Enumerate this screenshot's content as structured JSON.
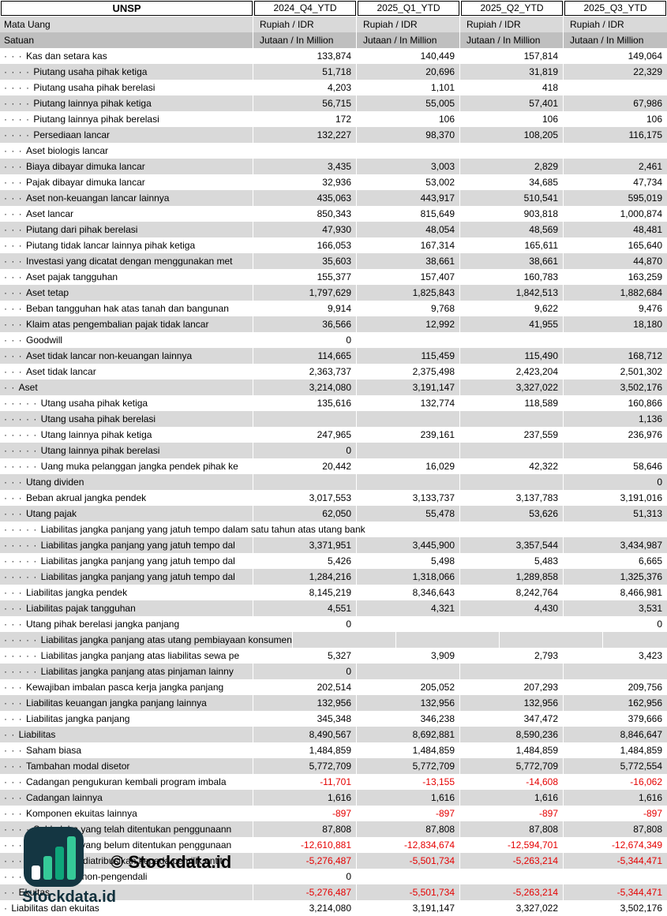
{
  "header": {
    "ticker": "UNSP",
    "periods": [
      "2024_Q4_YTD",
      "2025_Q1_YTD",
      "2025_Q2_YTD",
      "2025_Q3_YTD"
    ],
    "currency_row": {
      "label": "Mata Uang",
      "values": [
        "Rupiah / IDR",
        "Rupiah / IDR",
        "Rupiah / IDR",
        "Rupiah / IDR"
      ]
    },
    "unit_row": {
      "label": "Satuan",
      "values": [
        "Jutaan / In Million",
        "Jutaan / In Million",
        "Jutaan / In Million",
        "Jutaan / In Million"
      ]
    }
  },
  "colors": {
    "row_alt_bg": "#d9d9d9",
    "unit_row_bg": "#bfbfbf",
    "negative_value": "#e50000",
    "logo_dark": "#143642",
    "logo_green": "#35c998"
  },
  "watermark": {
    "copyright_text": "© Stockdata.id",
    "wordmark": "Stockdata.id",
    "icon": "bar-chart-icon"
  },
  "rows": [
    {
      "indent": 3,
      "label": "Kas dan setara kas",
      "values": [
        "133,874",
        "140,449",
        "157,814",
        "149,064"
      ]
    },
    {
      "indent": 4,
      "label": "Piutang usaha pihak ketiga",
      "values": [
        "51,718",
        "20,696",
        "31,819",
        "22,329"
      ]
    },
    {
      "indent": 4,
      "label": "Piutang usaha pihak berelasi",
      "values": [
        "4,203",
        "1,101",
        "418",
        ""
      ]
    },
    {
      "indent": 4,
      "label": "Piutang lainnya pihak ketiga",
      "values": [
        "56,715",
        "55,005",
        "57,401",
        "67,986"
      ]
    },
    {
      "indent": 4,
      "label": "Piutang lainnya pihak berelasi",
      "values": [
        "172",
        "106",
        "106",
        "106"
      ]
    },
    {
      "indent": 4,
      "label": "Persediaan lancar",
      "values": [
        "132,227",
        "98,370",
        "108,205",
        "116,175"
      ]
    },
    {
      "indent": 3,
      "label": "Aset biologis lancar",
      "values": [
        "",
        "",
        "",
        ""
      ]
    },
    {
      "indent": 3,
      "label": "Biaya dibayar dimuka lancar",
      "values": [
        "3,435",
        "3,003",
        "2,829",
        "2,461"
      ]
    },
    {
      "indent": 3,
      "label": "Pajak dibayar dimuka lancar",
      "values": [
        "32,936",
        "53,002",
        "34,685",
        "47,734"
      ]
    },
    {
      "indent": 3,
      "label": "Aset non-keuangan lancar lainnya",
      "values": [
        "435,063",
        "443,917",
        "510,541",
        "595,019"
      ]
    },
    {
      "indent": 3,
      "label": "Aset lancar",
      "values": [
        "850,343",
        "815,649",
        "903,818",
        "1,000,874"
      ]
    },
    {
      "indent": 3,
      "label": "Piutang dari pihak berelasi",
      "values": [
        "47,930",
        "48,054",
        "48,569",
        "48,481"
      ]
    },
    {
      "indent": 3,
      "label": "Piutang tidak lancar lainnya pihak ketiga",
      "values": [
        "166,053",
        "167,314",
        "165,611",
        "165,640"
      ]
    },
    {
      "indent": 3,
      "label": "Investasi yang dicatat dengan menggunakan met",
      "values": [
        "35,603",
        "38,661",
        "38,661",
        "44,870"
      ]
    },
    {
      "indent": 3,
      "label": "Aset pajak tangguhan",
      "values": [
        "155,377",
        "157,407",
        "160,783",
        "163,259"
      ]
    },
    {
      "indent": 3,
      "label": "Aset tetap",
      "values": [
        "1,797,629",
        "1,825,843",
        "1,842,513",
        "1,882,684"
      ]
    },
    {
      "indent": 3,
      "label": "Beban tangguhan hak atas tanah dan bangunan",
      "values": [
        "9,914",
        "9,768",
        "9,622",
        "9,476"
      ]
    },
    {
      "indent": 3,
      "label": "Klaim atas pengembalian pajak tidak lancar",
      "values": [
        "36,566",
        "12,992",
        "41,955",
        "18,180"
      ]
    },
    {
      "indent": 3,
      "label": "Goodwill",
      "values": [
        "0",
        "",
        "",
        ""
      ]
    },
    {
      "indent": 3,
      "label": "Aset tidak lancar non-keuangan lainnya",
      "values": [
        "114,665",
        "115,459",
        "115,490",
        "168,712"
      ]
    },
    {
      "indent": 3,
      "label": "Aset tidak lancar",
      "values": [
        "2,363,737",
        "2,375,498",
        "2,423,204",
        "2,501,302"
      ]
    },
    {
      "indent": 2,
      "label": "Aset",
      "values": [
        "3,214,080",
        "3,191,147",
        "3,327,022",
        "3,502,176"
      ]
    },
    {
      "indent": 5,
      "label": "Utang usaha pihak ketiga",
      "values": [
        "135,616",
        "132,774",
        "118,589",
        "160,866"
      ]
    },
    {
      "indent": 5,
      "label": "Utang usaha pihak berelasi",
      "values": [
        "",
        "",
        "",
        "1,136"
      ]
    },
    {
      "indent": 5,
      "label": "Utang lainnya pihak ketiga",
      "values": [
        "247,965",
        "239,161",
        "237,559",
        "236,976"
      ]
    },
    {
      "indent": 5,
      "label": "Utang lainnya pihak berelasi",
      "values": [
        "0",
        "",
        "",
        ""
      ]
    },
    {
      "indent": 5,
      "label": "Uang muka pelanggan jangka pendek pihak ke",
      "values": [
        "20,442",
        "16,029",
        "42,322",
        "58,646"
      ]
    },
    {
      "indent": 3,
      "label": "Utang dividen",
      "values": [
        "",
        "",
        "",
        "0"
      ]
    },
    {
      "indent": 3,
      "label": "Beban akrual jangka pendek",
      "values": [
        "3,017,553",
        "3,133,737",
        "3,137,783",
        "3,191,016"
      ]
    },
    {
      "indent": 3,
      "label": "Utang pajak",
      "values": [
        "62,050",
        "55,478",
        "53,626",
        "51,313"
      ]
    },
    {
      "indent": 5,
      "label": "Liabilitas jangka panjang yang jatuh tempo dalam satu tahun atas utang bank",
      "values": [
        "",
        "",
        "",
        ""
      ]
    },
    {
      "indent": 5,
      "label": "Liabilitas jangka panjang yang jatuh tempo dal",
      "values": [
        "3,371,951",
        "3,445,900",
        "3,357,544",
        "3,434,987"
      ]
    },
    {
      "indent": 5,
      "label": "Liabilitas jangka panjang yang jatuh tempo dal",
      "values": [
        "5,426",
        "5,498",
        "5,483",
        "6,665"
      ]
    },
    {
      "indent": 5,
      "label": "Liabilitas jangka panjang yang jatuh tempo dal",
      "values": [
        "1,284,216",
        "1,318,066",
        "1,289,858",
        "1,325,376"
      ]
    },
    {
      "indent": 3,
      "label": "Liabilitas jangka pendek",
      "values": [
        "8,145,219",
        "8,346,643",
        "8,242,764",
        "8,466,981"
      ]
    },
    {
      "indent": 3,
      "label": "Liabilitas pajak tangguhan",
      "values": [
        "4,551",
        "4,321",
        "4,430",
        "3,531"
      ]
    },
    {
      "indent": 3,
      "label": "Utang pihak berelasi jangka panjang",
      "values": [
        "0",
        "",
        "",
        "0"
      ]
    },
    {
      "indent": 5,
      "label": "Liabilitas jangka panjang atas utang pembiayaan konsumen",
      "values": [
        "",
        "",
        "",
        ""
      ]
    },
    {
      "indent": 5,
      "label": "Liabilitas jangka panjang atas liabilitas sewa pe",
      "values": [
        "5,327",
        "3,909",
        "2,793",
        "3,423"
      ]
    },
    {
      "indent": 5,
      "label": "Liabilitas jangka panjang atas pinjaman lainny",
      "values": [
        "0",
        "",
        "",
        ""
      ]
    },
    {
      "indent": 3,
      "label": "Kewajiban imbalan pasca kerja jangka panjang",
      "values": [
        "202,514",
        "205,052",
        "207,293",
        "209,756"
      ]
    },
    {
      "indent": 3,
      "label": "Liabilitas keuangan jangka panjang lainnya",
      "values": [
        "132,956",
        "132,956",
        "132,956",
        "162,956"
      ]
    },
    {
      "indent": 3,
      "label": "Liabilitas jangka panjang",
      "values": [
        "345,348",
        "346,238",
        "347,472",
        "379,666"
      ]
    },
    {
      "indent": 2,
      "label": "Liabilitas",
      "values": [
        "8,490,567",
        "8,692,881",
        "8,590,236",
        "8,846,647"
      ]
    },
    {
      "indent": 3,
      "label": "Saham biasa",
      "values": [
        "1,484,859",
        "1,484,859",
        "1,484,859",
        "1,484,859"
      ]
    },
    {
      "indent": 3,
      "label": "Tambahan modal disetor",
      "values": [
        "5,772,709",
        "5,772,709",
        "5,772,709",
        "5,772,554"
      ]
    },
    {
      "indent": 3,
      "label": "Cadangan pengukuran kembali program imbala",
      "values": [
        "-11,701",
        "-13,155",
        "-14,608",
        "-16,062"
      ]
    },
    {
      "indent": 3,
      "label": "Cadangan lainnya",
      "values": [
        "1,616",
        "1,616",
        "1,616",
        "1,616"
      ]
    },
    {
      "indent": 3,
      "label": "Komponen ekuitas lainnya",
      "values": [
        "-897",
        "-897",
        "-897",
        "-897"
      ]
    },
    {
      "indent": 4,
      "label": "Saldo laba yang telah ditentukan penggunaann",
      "values": [
        "87,808",
        "87,808",
        "87,808",
        "87,808"
      ]
    },
    {
      "indent": 4,
      "label": "Saldo laba yang belum ditentukan penggunaan",
      "values": [
        "-12,610,881",
        "-12,834,674",
        "-12,594,701",
        "-12,674,349"
      ]
    },
    {
      "indent": 3,
      "label": "Ekuitas yang diatribusikan kepada pemilik entit",
      "values": [
        "-5,276,487",
        "-5,501,734",
        "-5,263,214",
        "-5,344,471"
      ]
    },
    {
      "indent": 3,
      "label": "Kepentingan non-pengendali",
      "values": [
        "0",
        "",
        "",
        ""
      ]
    },
    {
      "indent": 2,
      "label": "Ekuitas",
      "values": [
        "-5,276,487",
        "-5,501,734",
        "-5,263,214",
        "-5,344,471"
      ]
    },
    {
      "indent": 1,
      "label": "Liabilitas dan ekuitas",
      "values": [
        "3,214,080",
        "3,191,147",
        "3,327,022",
        "3,502,176"
      ]
    }
  ]
}
